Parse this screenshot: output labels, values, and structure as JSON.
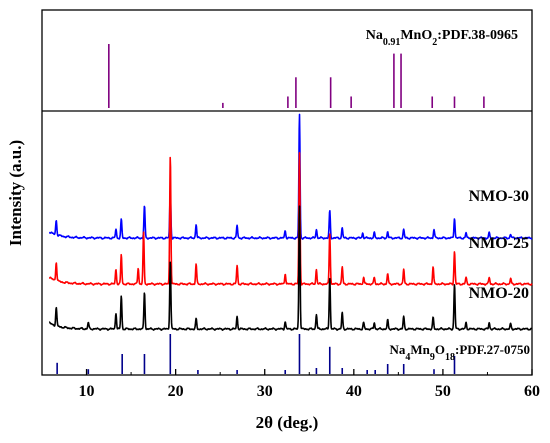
{
  "chart_data": {
    "type": "line",
    "xlabel": "2θ (deg.)",
    "ylabel": "Intensity (a.u.)",
    "xlim": [
      5,
      60
    ],
    "xticks": [
      10,
      20,
      30,
      40,
      50,
      60
    ],
    "grid": false,
    "reference_top": {
      "label_parts": [
        "Na",
        "0.91",
        "MnO",
        "2",
        ":PDF.38-0965"
      ],
      "color": "#800080",
      "peaks": [
        {
          "x": 12.5,
          "h": 1.0
        },
        {
          "x": 25.3,
          "h": 0.08
        },
        {
          "x": 32.6,
          "h": 0.18
        },
        {
          "x": 33.5,
          "h": 0.48
        },
        {
          "x": 37.4,
          "h": 0.48
        },
        {
          "x": 39.7,
          "h": 0.18
        },
        {
          "x": 44.5,
          "h": 0.85
        },
        {
          "x": 45.3,
          "h": 0.85
        },
        {
          "x": 48.8,
          "h": 0.18
        },
        {
          "x": 51.3,
          "h": 0.18
        },
        {
          "x": 54.6,
          "h": 0.18
        }
      ]
    },
    "reference_bottom": {
      "label_parts": [
        "Na",
        "4",
        "Mn",
        "9",
        "O",
        "18",
        ":PDF.27-0750"
      ],
      "color": "#00008b",
      "peaks": [
        {
          "x": 6.7,
          "h": 0.28
        },
        {
          "x": 10.2,
          "h": 0.12
        },
        {
          "x": 14.0,
          "h": 0.5
        },
        {
          "x": 16.5,
          "h": 0.5
        },
        {
          "x": 19.4,
          "h": 1.0
        },
        {
          "x": 22.5,
          "h": 0.1
        },
        {
          "x": 26.9,
          "h": 0.1
        },
        {
          "x": 32.3,
          "h": 0.1
        },
        {
          "x": 33.9,
          "h": 1.0
        },
        {
          "x": 35.8,
          "h": 0.15
        },
        {
          "x": 37.3,
          "h": 0.68
        },
        {
          "x": 38.7,
          "h": 0.15
        },
        {
          "x": 41.5,
          "h": 0.1
        },
        {
          "x": 42.4,
          "h": 0.1
        },
        {
          "x": 43.8,
          "h": 0.25
        },
        {
          "x": 45.6,
          "h": 0.25
        },
        {
          "x": 49.0,
          "h": 0.12
        },
        {
          "x": 51.3,
          "h": 0.45
        }
      ]
    },
    "series": [
      {
        "name": "NMO-30",
        "color": "#0000ff",
        "peaks": [
          {
            "x": 6.6,
            "h": 0.12
          },
          {
            "x": 13.3,
            "h": 0.07
          },
          {
            "x": 13.9,
            "h": 0.15
          },
          {
            "x": 16.5,
            "h": 0.26
          },
          {
            "x": 19.4,
            "h": 0.38
          },
          {
            "x": 22.3,
            "h": 0.11
          },
          {
            "x": 26.9,
            "h": 0.1
          },
          {
            "x": 32.3,
            "h": 0.06
          },
          {
            "x": 33.9,
            "h": 1.0
          },
          {
            "x": 35.8,
            "h": 0.07
          },
          {
            "x": 37.3,
            "h": 0.22
          },
          {
            "x": 38.7,
            "h": 0.08
          },
          {
            "x": 41.0,
            "h": 0.04
          },
          {
            "x": 42.3,
            "h": 0.04
          },
          {
            "x": 43.8,
            "h": 0.05
          },
          {
            "x": 45.6,
            "h": 0.07
          },
          {
            "x": 49.0,
            "h": 0.07
          },
          {
            "x": 51.3,
            "h": 0.16
          },
          {
            "x": 52.6,
            "h": 0.04
          },
          {
            "x": 55.2,
            "h": 0.04
          },
          {
            "x": 57.6,
            "h": 0.03
          }
        ]
      },
      {
        "name": "NMO-25",
        "color": "#ff0000",
        "peaks": [
          {
            "x": 6.6,
            "h": 0.14
          },
          {
            "x": 13.3,
            "h": 0.11
          },
          {
            "x": 13.9,
            "h": 0.22
          },
          {
            "x": 15.8,
            "h": 0.12
          },
          {
            "x": 16.4,
            "h": 0.39
          },
          {
            "x": 19.4,
            "h": 0.98
          },
          {
            "x": 22.3,
            "h": 0.15
          },
          {
            "x": 26.9,
            "h": 0.14
          },
          {
            "x": 32.3,
            "h": 0.08
          },
          {
            "x": 33.9,
            "h": 1.0
          },
          {
            "x": 35.8,
            "h": 0.11
          },
          {
            "x": 37.3,
            "h": 0.39
          },
          {
            "x": 38.7,
            "h": 0.13
          },
          {
            "x": 41.1,
            "h": 0.05
          },
          {
            "x": 42.3,
            "h": 0.05
          },
          {
            "x": 43.8,
            "h": 0.08
          },
          {
            "x": 45.6,
            "h": 0.11
          },
          {
            "x": 48.9,
            "h": 0.13
          },
          {
            "x": 51.3,
            "h": 0.25
          },
          {
            "x": 52.6,
            "h": 0.05
          },
          {
            "x": 55.2,
            "h": 0.05
          },
          {
            "x": 57.6,
            "h": 0.04
          }
        ]
      },
      {
        "name": "NMO-20",
        "color": "#000000",
        "peaks": [
          {
            "x": 6.6,
            "h": 0.15
          },
          {
            "x": 10.2,
            "h": 0.05
          },
          {
            "x": 13.3,
            "h": 0.13
          },
          {
            "x": 13.9,
            "h": 0.27
          },
          {
            "x": 16.5,
            "h": 0.3
          },
          {
            "x": 19.4,
            "h": 0.55
          },
          {
            "x": 22.3,
            "h": 0.08
          },
          {
            "x": 26.9,
            "h": 0.1
          },
          {
            "x": 32.3,
            "h": 0.06
          },
          {
            "x": 33.9,
            "h": 1.0
          },
          {
            "x": 35.8,
            "h": 0.12
          },
          {
            "x": 37.3,
            "h": 0.42
          },
          {
            "x": 38.7,
            "h": 0.13
          },
          {
            "x": 41.1,
            "h": 0.05
          },
          {
            "x": 42.3,
            "h": 0.05
          },
          {
            "x": 43.8,
            "h": 0.07
          },
          {
            "x": 45.6,
            "h": 0.1
          },
          {
            "x": 48.9,
            "h": 0.09
          },
          {
            "x": 51.3,
            "h": 0.36
          },
          {
            "x": 52.6,
            "h": 0.05
          },
          {
            "x": 55.2,
            "h": 0.05
          },
          {
            "x": 57.6,
            "h": 0.04
          }
        ]
      }
    ]
  }
}
